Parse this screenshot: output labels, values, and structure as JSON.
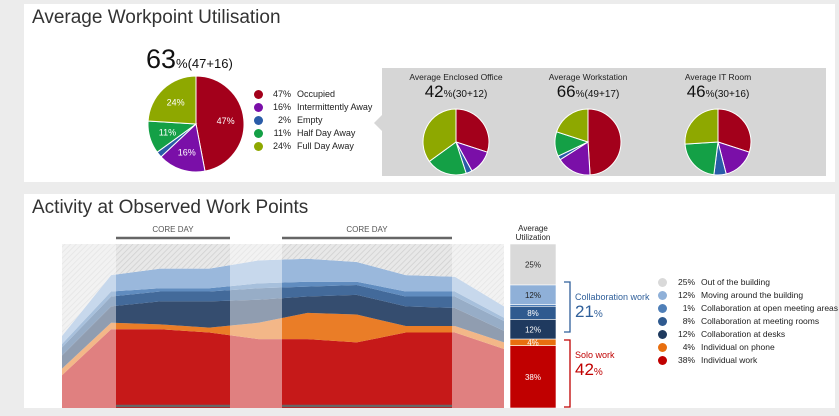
{
  "panel1": {
    "title": "Average Workpoint Utilisation",
    "main": {
      "value": "63",
      "detail": "%(47+16)",
      "slices": [
        {
          "pct": 47,
          "label": "47%",
          "color": "#a3001b"
        },
        {
          "pct": 16,
          "label": "16%",
          "color": "#7a0fa8"
        },
        {
          "pct": 2,
          "label": "",
          "color": "#2a5ca8"
        },
        {
          "pct": 11,
          "label": "11%",
          "color": "#14a046"
        },
        {
          "pct": 24,
          "label": "24%",
          "color": "#8ea800"
        }
      ]
    },
    "legend": [
      {
        "pct": "47%",
        "label": "Occupied",
        "color": "#a3001b"
      },
      {
        "pct": "16%",
        "label": "Intermittently Away",
        "color": "#7a0fa8"
      },
      {
        "pct": "2%",
        "label": "Empty",
        "color": "#2a5ca8"
      },
      {
        "pct": "11%",
        "label": "Half Day Away",
        "color": "#14a046"
      },
      {
        "pct": "24%",
        "label": "Full Day Away",
        "color": "#8ea800"
      }
    ],
    "minis": [
      {
        "title": "Average Enclosed Office",
        "value": "42",
        "detail": "%(30+12)",
        "slices": [
          30,
          12,
          3,
          20,
          35
        ]
      },
      {
        "title": "Average Workstation",
        "value": "66",
        "detail": "%(49+17)",
        "slices": [
          49,
          17,
          2,
          12,
          20
        ]
      },
      {
        "title": "Average IT Room",
        "value": "46",
        "detail": "%(30+16)",
        "slices": [
          30,
          16,
          6,
          22,
          26
        ]
      }
    ]
  },
  "panel2": {
    "title": "Activity at Observed Work Points",
    "core_day_1": "CORE DAY",
    "core_day_2": "CORE DAY",
    "avg_header_1": "Average",
    "avg_header_2": "Utilization",
    "collab_label": "Collaboration work",
    "collab_value": "21",
    "collab_unit": "%",
    "solo_label": "Solo work",
    "solo_value": "42",
    "solo_unit": "%",
    "legend": [
      {
        "pct": "25%",
        "label": "Out of the building",
        "color": "#d9d9d9"
      },
      {
        "pct": "12%",
        "label": "Moving around the building",
        "color": "#8fb0d8"
      },
      {
        "pct": "1%",
        "label": "Collaboration at open meeting areas",
        "color": "#4f7fb8"
      },
      {
        "pct": "8%",
        "label": "Collaboration at meeting rooms",
        "color": "#2f5a8f"
      },
      {
        "pct": "12%",
        "label": "Collaboration at desks",
        "color": "#1f3a5f"
      },
      {
        "pct": "4%",
        "label": "Individual on phone",
        "color": "#e86f0f"
      },
      {
        "pct": "38%",
        "label": "Individual work",
        "color": "#c00000"
      }
    ]
  },
  "chart_data": [
    {
      "type": "pie",
      "title": "Average Workpoint Utilisation",
      "categories": [
        "Occupied",
        "Intermittently Away",
        "Empty",
        "Half Day Away",
        "Full Day Away"
      ],
      "values": [
        47,
        16,
        2,
        11,
        24
      ]
    },
    {
      "type": "area",
      "title": "Activity at Observed Work Points",
      "x": [
        1,
        2,
        3,
        4,
        5,
        6,
        7,
        8,
        9,
        10
      ],
      "series": [
        {
          "name": "Individual work",
          "values": [
            20,
            48,
            48,
            46,
            42,
            42,
            40,
            46,
            46,
            36
          ]
        },
        {
          "name": "Individual on phone",
          "values": [
            4,
            4,
            3,
            3,
            10,
            16,
            17,
            4,
            4,
            4
          ]
        },
        {
          "name": "Collaboration at desks",
          "values": [
            8,
            10,
            14,
            16,
            14,
            10,
            12,
            12,
            11,
            7
          ]
        },
        {
          "name": "Collaboration at meeting rooms",
          "values": [
            5,
            6,
            6,
            6,
            7,
            6,
            6,
            6,
            7,
            6
          ]
        },
        {
          "name": "Collaboration at open meeting areas",
          "values": [
            2,
            3,
            2,
            2,
            3,
            3,
            2,
            3,
            3,
            2
          ]
        },
        {
          "name": "Moving around the building",
          "values": [
            5,
            10,
            12,
            12,
            14,
            14,
            12,
            10,
            9,
            7
          ]
        },
        {
          "name": "Out of the building",
          "values": [
            56,
            19,
            15,
            15,
            10,
            9,
            11,
            19,
            20,
            38
          ]
        }
      ],
      "average_bar": [
        {
          "name": "Out of the building",
          "value": 25,
          "label": "25%"
        },
        {
          "name": "Moving around the building",
          "value": 12,
          "label": "12%"
        },
        {
          "name": "Collaboration at open meeting areas",
          "value": 1,
          "label": ""
        },
        {
          "name": "Collaboration at meeting rooms",
          "value": 8,
          "label": "8%"
        },
        {
          "name": "Collaboration at desks",
          "value": 12,
          "label": "12%"
        },
        {
          "name": "Individual on phone",
          "value": 4,
          "label": "4%"
        },
        {
          "name": "Individual work",
          "value": 38,
          "label": "38%"
        }
      ]
    }
  ]
}
